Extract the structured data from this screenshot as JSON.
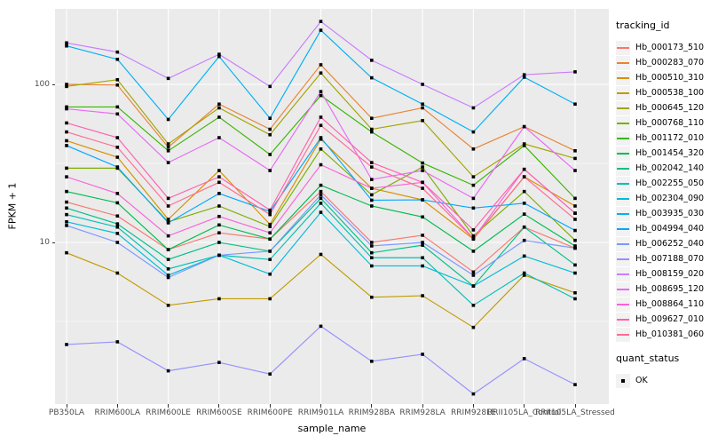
{
  "figure": {
    "background": "#FFFFFF",
    "panel_background": "#EBEBEB",
    "grid_color": "#FFFFFF",
    "tick_color": "#333333",
    "tick_label_color": "#4D4D4D",
    "marker": "black-square",
    "marker_color": "#000000"
  },
  "axes": {
    "x_title": "sample_name",
    "y_title": "FPKM + 1",
    "y_ticks": [
      {
        "value": 100,
        "label": "100"
      },
      {
        "value": 10,
        "label": "10"
      }
    ],
    "y_minor_gridlines": [
      31.623,
      3.1623
    ]
  },
  "legend": {
    "tracking_title": "tracking_id",
    "quant_title": "quant_status",
    "quant_items": [
      {
        "label": "OK",
        "marker": "black-square"
      }
    ]
  },
  "chart_data": {
    "type": "line",
    "title": "",
    "xlabel": "sample_name",
    "ylabel": "FPKM + 1",
    "y_scale": "log10",
    "ylim": [
      1,
      300
    ],
    "grid": true,
    "legend_position": "right",
    "x_categories": [
      "PB350LA",
      "RRIM600LA",
      "RRIM600LE",
      "RRIM600SE",
      "RRIM600PE",
      "RRIM901LA",
      "RRIM928BA",
      "RRIM928LA",
      "RRIM928LE",
      "RRII105LA_Control",
      "RRII105LA_Stressed"
    ],
    "series": [
      {
        "name": "Hb_000173_510",
        "color": "#F8766D",
        "values": [
          18,
          14.7,
          9.0,
          11.5,
          10.5,
          21,
          10,
          11.1,
          6.5,
          12.5,
          9.2
        ]
      },
      {
        "name": "Hb_000283_070",
        "color": "#EA8331",
        "values": [
          100,
          99,
          40,
          75,
          52,
          133,
          61,
          71,
          39,
          54,
          38
        ]
      },
      {
        "name": "Hb_000510_310",
        "color": "#D89000",
        "values": [
          44,
          34.6,
          14,
          28.5,
          13,
          45,
          22,
          18.6,
          10.5,
          26,
          17
        ]
      },
      {
        "name": "Hb_000538_100",
        "color": "#C09B00",
        "values": [
          8.6,
          6.4,
          4.0,
          4.4,
          4.4,
          8.4,
          4.5,
          4.6,
          2.9,
          6.2,
          4.8
        ]
      },
      {
        "name": "Hb_000645_120",
        "color": "#A3A500",
        "values": [
          97,
          107,
          42,
          71,
          48,
          118,
          52,
          59,
          26,
          42,
          34
        ]
      },
      {
        "name": "Hb_000768_110",
        "color": "#7CAE00",
        "values": [
          29.5,
          29.5,
          13.5,
          17,
          12.6,
          39,
          20,
          30,
          11,
          21,
          10.3
        ]
      },
      {
        "name": "Hb_001172_010",
        "color": "#39B600",
        "values": [
          72,
          72,
          38,
          62,
          36,
          85,
          50,
          31.8,
          23,
          41,
          19
        ]
      },
      {
        "name": "Hb_001454_320",
        "color": "#00BB4E",
        "values": [
          21,
          17.8,
          9.0,
          12.9,
          10.5,
          23,
          17,
          14.5,
          8.8,
          15.1,
          9.5
        ]
      },
      {
        "name": "Hb_002042_140",
        "color": "#00C087",
        "values": [
          16.5,
          13.1,
          7.8,
          10,
          8.8,
          19,
          8.6,
          9.6,
          5.3,
          12.5,
          7.2
        ]
      },
      {
        "name": "Hb_002255_050",
        "color": "#00C0B4",
        "values": [
          15,
          12.5,
          6.8,
          8.3,
          7.8,
          17.7,
          8.0,
          8.0,
          4.0,
          6.4,
          4.4
        ]
      },
      {
        "name": "Hb_002304_090",
        "color": "#00BCD8",
        "values": [
          13.5,
          11.4,
          6.2,
          8.3,
          6.3,
          15.5,
          7.1,
          7.1,
          5.3,
          8.2,
          6.4
        ]
      },
      {
        "name": "Hb_003935_030",
        "color": "#00B0F6",
        "values": [
          175,
          144,
          60,
          150,
          61,
          220,
          110,
          75,
          50,
          111,
          75
        ]
      },
      {
        "name": "Hb_004994_040",
        "color": "#00A7FF",
        "values": [
          41,
          30,
          13.3,
          20.4,
          15.7,
          46,
          18.5,
          18.6,
          16.5,
          17.7,
          11.9
        ]
      },
      {
        "name": "Hb_006252_040",
        "color": "#7997FF",
        "values": [
          12.8,
          10,
          6.0,
          8.3,
          8.8,
          20,
          9.5,
          10,
          6.2,
          10.3,
          9.2
        ]
      },
      {
        "name": "Hb_007188_070",
        "color": "#9590FF",
        "values": [
          2.26,
          2.35,
          1.54,
          1.74,
          1.47,
          2.95,
          1.77,
          1.96,
          1.1,
          1.84,
          1.26
        ]
      },
      {
        "name": "Hb_008159_020",
        "color": "#C77CFF",
        "values": [
          183,
          160,
          109,
          155,
          97,
          250,
          142,
          100,
          71,
          115,
          120
        ]
      },
      {
        "name": "Hb_008695_120",
        "color": "#E76BF3",
        "values": [
          70,
          65,
          32,
          46,
          28.5,
          90,
          25,
          28.5,
          19,
          54,
          28.5
        ]
      },
      {
        "name": "Hb_008864_110",
        "color": "#FB61D7",
        "values": [
          26,
          20.4,
          11,
          14.6,
          11.5,
          31,
          22,
          24,
          10.6,
          29,
          15.3
        ]
      },
      {
        "name": "Hb_009627_010",
        "color": "#FF62B0",
        "values": [
          57,
          46,
          19,
          26,
          16,
          62,
          32,
          24,
          12,
          29,
          15.3
        ]
      },
      {
        "name": "Hb_010381_060",
        "color": "#FF6B94",
        "values": [
          50,
          40,
          17,
          24,
          15,
          55,
          30,
          22,
          10.6,
          26,
          14
        ]
      }
    ]
  }
}
